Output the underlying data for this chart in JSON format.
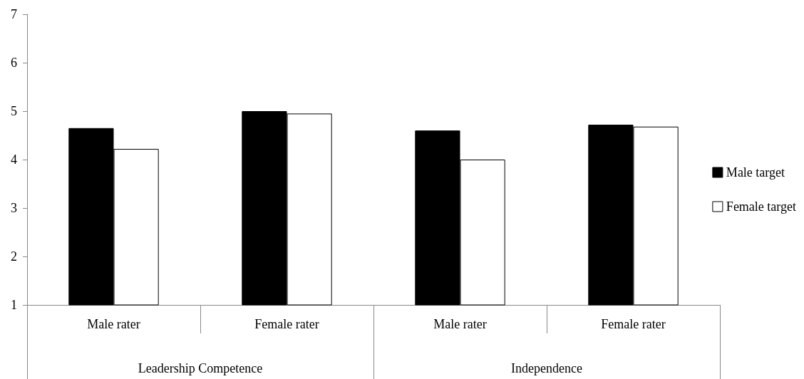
{
  "chart_data": {
    "type": "bar",
    "categories": [
      "Male rater",
      "Female rater",
      "Male rater",
      "Female rater"
    ],
    "annotations": [
      "Leadership Competence",
      "Independence"
    ],
    "series": [
      {
        "name": "Male target",
        "color": "#000000",
        "values": [
          4.65,
          5.0,
          4.6,
          4.72
        ]
      },
      {
        "name": "Female target",
        "color": "#ffffff",
        "values": [
          4.22,
          4.95,
          4.0,
          4.68
        ]
      }
    ],
    "ylim": [
      1,
      7
    ],
    "yticks": [
      1,
      2,
      3,
      4,
      5,
      6,
      7
    ],
    "grid": false,
    "legend": "right"
  }
}
